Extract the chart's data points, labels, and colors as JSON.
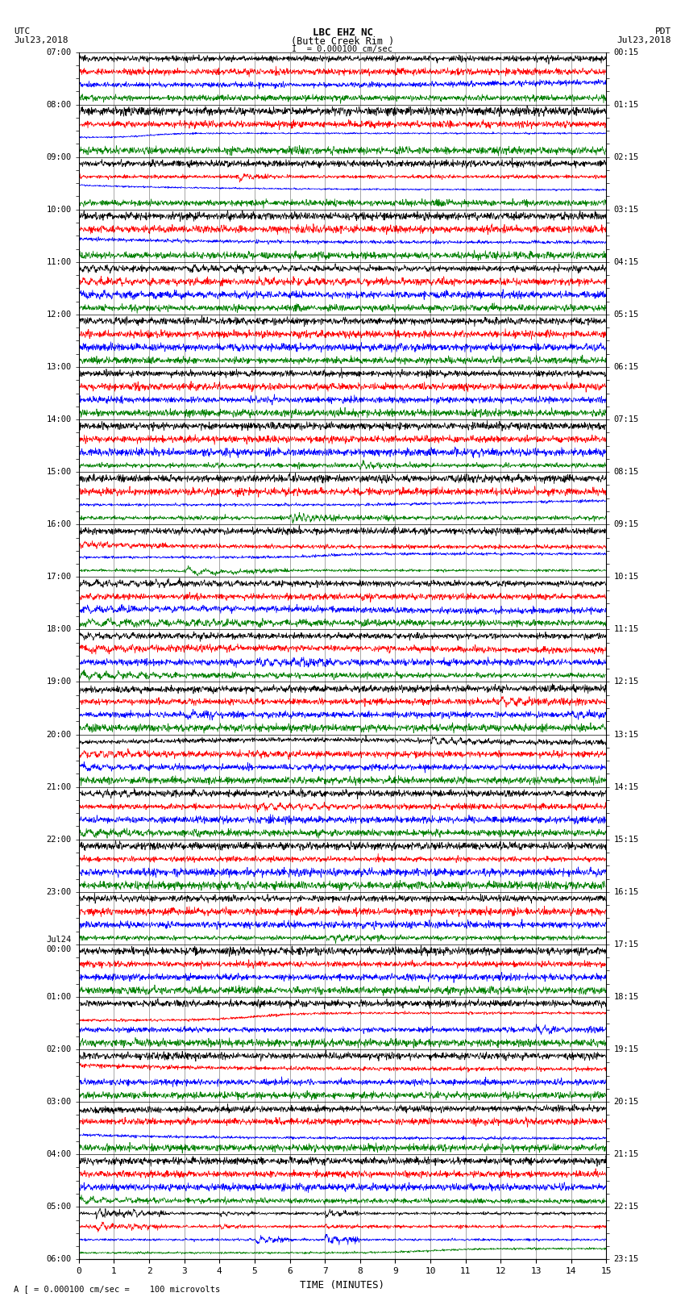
{
  "title_line1": "LBC EHZ NC",
  "title_line2": "(Butte Creek Rim )",
  "scale_text": "I  = 0.000100 cm/sec",
  "left_timezone": "UTC",
  "left_date": "Jul23,2018",
  "right_timezone": "PDT",
  "right_date": "Jul23,2018",
  "xlabel": "TIME (MINUTES)",
  "bottom_note": "A [ = 0.000100 cm/sec =    100 microvolts",
  "utc_labels": [
    "07:00",
    "",
    "",
    "",
    "08:00",
    "",
    "",
    "",
    "09:00",
    "",
    "",
    "",
    "10:00",
    "",
    "",
    "",
    "11:00",
    "",
    "",
    "",
    "12:00",
    "",
    "",
    "",
    "13:00",
    "",
    "",
    "",
    "14:00",
    "",
    "",
    "",
    "15:00",
    "",
    "",
    "",
    "16:00",
    "",
    "",
    "",
    "17:00",
    "",
    "",
    "",
    "18:00",
    "",
    "",
    "",
    "19:00",
    "",
    "",
    "",
    "20:00",
    "",
    "",
    "",
    "21:00",
    "",
    "",
    "",
    "22:00",
    "",
    "",
    "",
    "23:00",
    "",
    "",
    "",
    "Jul24\n00:00",
    "",
    "",
    "",
    "01:00",
    "",
    "",
    "",
    "02:00",
    "",
    "",
    "",
    "03:00",
    "",
    "",
    "",
    "04:00",
    "",
    "",
    "",
    "05:00",
    "",
    "",
    "",
    "06:00"
  ],
  "pdt_labels": [
    "00:15",
    "",
    "",
    "",
    "01:15",
    "",
    "",
    "",
    "02:15",
    "",
    "",
    "",
    "03:15",
    "",
    "",
    "",
    "04:15",
    "",
    "",
    "",
    "05:15",
    "",
    "",
    "",
    "06:15",
    "",
    "",
    "",
    "07:15",
    "",
    "",
    "",
    "08:15",
    "",
    "",
    "",
    "09:15",
    "",
    "",
    "",
    "10:15",
    "",
    "",
    "",
    "11:15",
    "",
    "",
    "",
    "12:15",
    "",
    "",
    "",
    "13:15",
    "",
    "",
    "",
    "14:15",
    "",
    "",
    "",
    "15:15",
    "",
    "",
    "",
    "16:15",
    "",
    "",
    "",
    "17:15",
    "",
    "",
    "",
    "18:15",
    "",
    "",
    "",
    "19:15",
    "",
    "",
    "",
    "20:15",
    "",
    "",
    "",
    "21:15",
    "",
    "",
    "",
    "22:15",
    "",
    "",
    "",
    "23:15"
  ],
  "colors": [
    "black",
    "red",
    "blue",
    "green"
  ],
  "xmin": 0,
  "xmax": 15,
  "bg_color": "white",
  "num_hours": 23,
  "traces_per_hour": 4
}
